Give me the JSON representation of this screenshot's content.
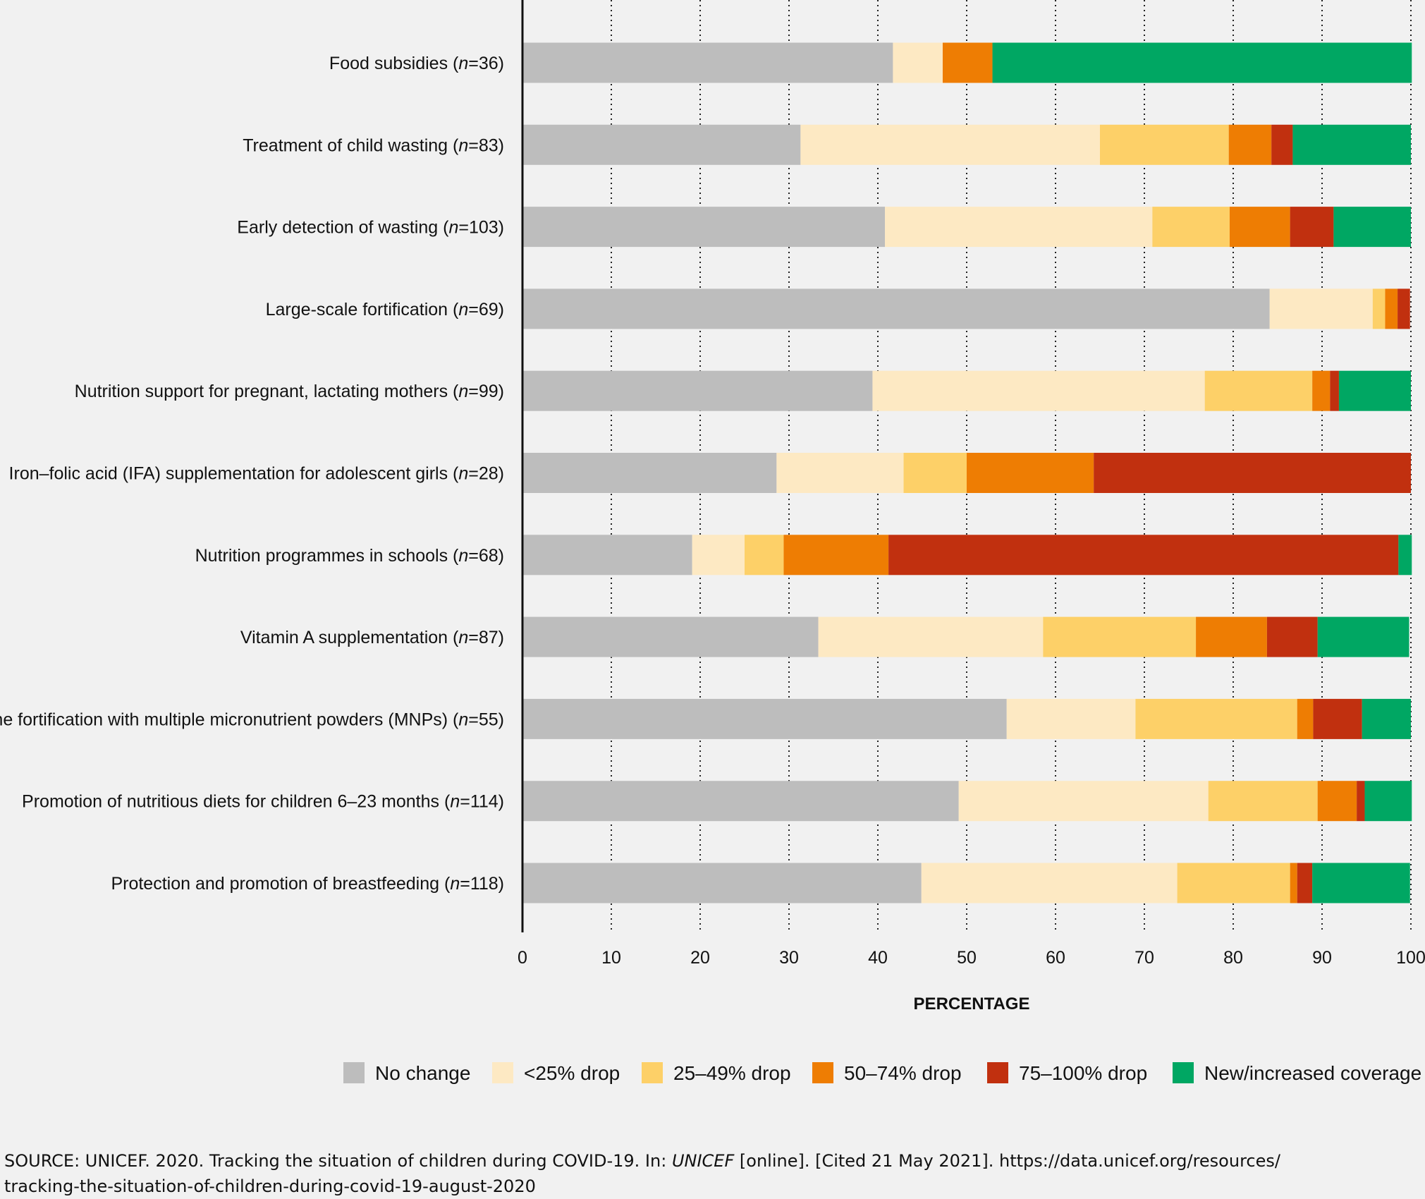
{
  "chart_data": {
    "type": "bar",
    "orientation": "horizontal",
    "stacked": true,
    "xlabel": "PERCENTAGE",
    "xlim": [
      0,
      100
    ],
    "xticks": [
      0,
      10,
      20,
      30,
      40,
      50,
      60,
      70,
      80,
      90,
      100
    ],
    "grid": "vertical dotted",
    "legend_position": "bottom",
    "categories": [
      {
        "label": "Food subsidies",
        "n": "36"
      },
      {
        "label": "Treatment of child wasting",
        "n": "83"
      },
      {
        "label": "Early detection of wasting",
        "n": "103"
      },
      {
        "label": "Large-scale fortification",
        "n": "69"
      },
      {
        "label": "Nutrition support for pregnant, lactating mothers",
        "n": "99"
      },
      {
        "label": "Iron–folic acid (IFA) supplementation for adolescent girls",
        "n": "28"
      },
      {
        "label": "Nutrition programmes in schools",
        "n": "68"
      },
      {
        "label": "Vitamin A supplementation",
        "n": "87"
      },
      {
        "label": "Home fortification with multiple micronutrient powders (MNPs)",
        "n": "55"
      },
      {
        "label": "Promotion of nutritious diets for children 6–23 months",
        "n": "114"
      },
      {
        "label": "Protection and promotion of breastfeeding",
        "n": "118"
      }
    ],
    "series": [
      {
        "name": "No change",
        "color": "#bdbdbd",
        "values": [
          41.7,
          31.3,
          40.8,
          84.1,
          39.4,
          28.6,
          19.1,
          33.3,
          54.5,
          49.1,
          44.9
        ]
      },
      {
        "name": "<25% drop",
        "color": "#fde9c3",
        "values": [
          5.6,
          33.7,
          30.1,
          11.6,
          37.4,
          14.3,
          5.9,
          25.3,
          14.5,
          28.1,
          28.8
        ]
      },
      {
        "name": "25–49% drop",
        "color": "#fdd068",
        "values": [
          0,
          14.5,
          8.7,
          1.4,
          12.1,
          7.1,
          4.4,
          17.2,
          18.2,
          12.3,
          12.7
        ]
      },
      {
        "name": "50–74% drop",
        "color": "#ee7d03",
        "values": [
          5.6,
          4.8,
          6.8,
          1.4,
          2.0,
          14.3,
          11.8,
          8.0,
          1.8,
          4.4,
          0.8
        ]
      },
      {
        "name": "75–100% drop",
        "color": "#c1300f",
        "values": [
          0,
          2.4,
          4.9,
          1.4,
          1.0,
          35.7,
          57.4,
          5.7,
          5.5,
          0.9,
          1.7
        ]
      },
      {
        "name": "New/increased coverage",
        "color": "#00a763",
        "values": [
          47.2,
          13.3,
          8.7,
          0,
          8.1,
          0,
          1.5,
          10.3,
          5.5,
          5.3,
          11.0
        ]
      }
    ]
  },
  "source": {
    "prefix": "SOURCE: UNICEF. 2020. Tracking the situation of children during COVID-19. In: ",
    "italic": "UNICEF",
    "suffix": " [online]. [Cited 21 May 2021]. https://data.unicef.org/resources/",
    "line2": "tracking-the-situation-of-children-during-covid-19-august-2020"
  }
}
